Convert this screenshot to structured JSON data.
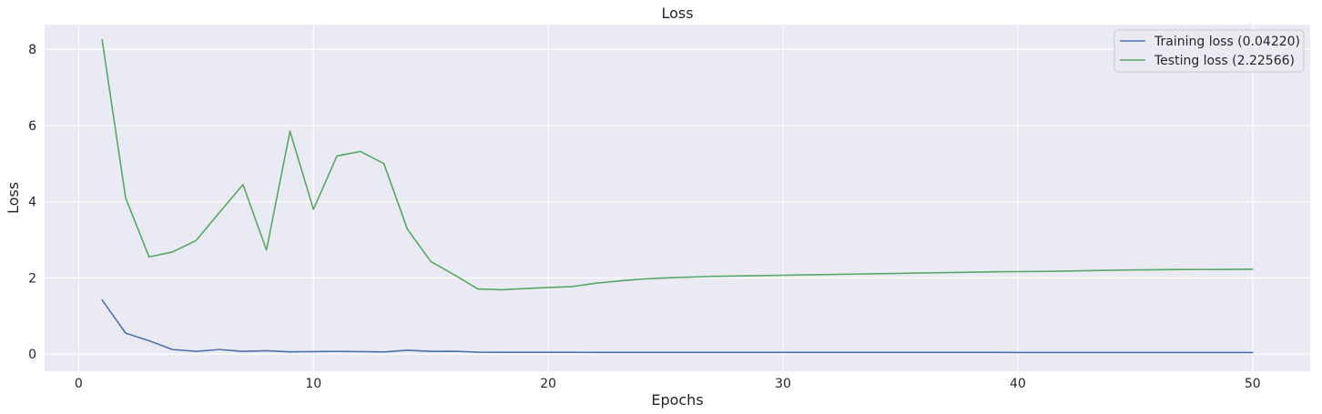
{
  "chart_data": {
    "type": "line",
    "title": "Loss",
    "xlabel": "Epochs",
    "ylabel": "Loss",
    "xlim": [
      -1.45,
      52.45
    ],
    "ylim": [
      -0.45,
      8.65
    ],
    "xticks": [
      0,
      10,
      20,
      30,
      40,
      50
    ],
    "yticks": [
      0,
      2,
      4,
      6,
      8
    ],
    "grid": true,
    "legend_position": "upper right",
    "background_color": "#eaeaf2",
    "grid_color": "#ffffff",
    "series": [
      {
        "name": "Training loss (0.04220)",
        "color": "#4c72b0",
        "x": [
          1,
          2,
          3,
          4,
          5,
          6,
          7,
          8,
          9,
          10,
          11,
          12,
          13,
          14,
          15,
          16,
          17,
          18,
          19,
          20,
          21,
          22,
          23,
          24,
          25,
          26,
          27,
          28,
          29,
          30,
          31,
          32,
          33,
          34,
          35,
          36,
          37,
          38,
          39,
          40,
          41,
          42,
          43,
          44,
          45,
          46,
          47,
          48,
          49,
          50
        ],
        "y": [
          1.42,
          0.55,
          0.35,
          0.12,
          0.07,
          0.12,
          0.07,
          0.09,
          0.06,
          0.065,
          0.07,
          0.065,
          0.055,
          0.1,
          0.07,
          0.075,
          0.05,
          0.048,
          0.047,
          0.046,
          0.046,
          0.045,
          0.045,
          0.045,
          0.045,
          0.044,
          0.044,
          0.044,
          0.044,
          0.044,
          0.043,
          0.043,
          0.043,
          0.043,
          0.043,
          0.043,
          0.043,
          0.043,
          0.043,
          0.042,
          0.042,
          0.042,
          0.042,
          0.042,
          0.042,
          0.042,
          0.042,
          0.042,
          0.042,
          0.0422
        ]
      },
      {
        "name": "Testing loss (2.22566)",
        "color": "#55a868",
        "x": [
          1,
          2,
          3,
          4,
          5,
          6,
          7,
          8,
          9,
          10,
          11,
          12,
          13,
          14,
          15,
          16,
          17,
          18,
          19,
          20,
          21,
          22,
          23,
          24,
          25,
          26,
          27,
          28,
          29,
          30,
          31,
          32,
          33,
          34,
          35,
          36,
          37,
          38,
          39,
          40,
          41,
          42,
          43,
          44,
          45,
          46,
          47,
          48,
          49,
          50
        ],
        "y": [
          8.25,
          4.1,
          2.55,
          2.68,
          2.98,
          3.72,
          4.45,
          2.73,
          5.85,
          3.8,
          5.2,
          5.32,
          5.0,
          3.28,
          2.43,
          2.08,
          1.71,
          1.69,
          1.72,
          1.75,
          1.77,
          1.86,
          1.92,
          1.97,
          2.0,
          2.02,
          2.04,
          2.05,
          2.06,
          2.07,
          2.08,
          2.09,
          2.1,
          2.11,
          2.12,
          2.13,
          2.14,
          2.15,
          2.16,
          2.165,
          2.17,
          2.18,
          2.19,
          2.2,
          2.21,
          2.215,
          2.22,
          2.222,
          2.224,
          2.22566
        ]
      }
    ]
  }
}
